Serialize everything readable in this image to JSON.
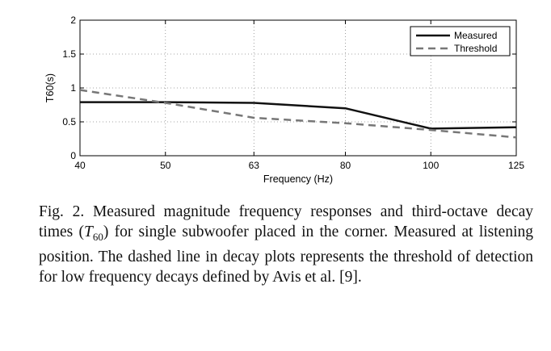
{
  "chart_data": {
    "type": "line",
    "xlabel": "Frequency (Hz)",
    "ylabel": "T60(s)",
    "xscale": "log",
    "xlim": [
      40,
      125
    ],
    "ylim": [
      0,
      2
    ],
    "xticks": [
      40,
      50,
      63,
      80,
      100,
      125
    ],
    "xtick_labels": [
      "40",
      "50",
      "63",
      "80",
      "100",
      "125"
    ],
    "yticks": [
      0,
      0.5,
      1,
      1.5,
      2
    ],
    "ytick_labels": [
      "0",
      "0.5",
      "1",
      "1.5",
      "2"
    ],
    "grid": true,
    "legend_position": "top-right",
    "series": [
      {
        "name": "Measured",
        "style": "solid",
        "color": "#111111",
        "x": [
          40,
          50,
          63,
          80,
          100,
          125
        ],
        "y": [
          0.79,
          0.79,
          0.78,
          0.7,
          0.4,
          0.42
        ]
      },
      {
        "name": "Threshold",
        "style": "dashed",
        "color": "#777777",
        "x": [
          40,
          50,
          63,
          80,
          100,
          125
        ],
        "y": [
          0.97,
          0.78,
          0.56,
          0.48,
          0.38,
          0.27
        ]
      }
    ]
  },
  "caption": {
    "label": "Fig. 2.",
    "text_before": " Measured magnitude frequency responses and third-octave decay times (",
    "symbol": "T",
    "subscript": "60",
    "text_after": ") for single subwoofer placed in the corner. Measured at listening position. The dashed line in decay plots represents the threshold of detection for low frequency decays defined by Avis et al. [9]."
  }
}
